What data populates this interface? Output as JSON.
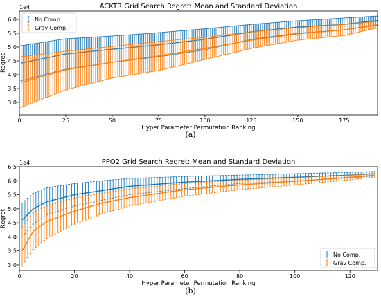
{
  "chart_data": [
    {
      "type": "line",
      "panel_label": "(a)",
      "title": "ACKTR Grid Search Regret: Mean and Standard Deviation",
      "xlabel": "Hyper Parameter Permutation Ranking",
      "ylabel": "Regret",
      "y_multiplier": "1e4",
      "xlim": [
        0,
        193
      ],
      "ylim": [
        2.55,
        6.3
      ],
      "xticks": [
        0,
        25,
        50,
        75,
        100,
        125,
        150,
        175
      ],
      "yticks": [
        3.0,
        3.5,
        4.0,
        4.5,
        5.0,
        5.5,
        6.0
      ],
      "grid": false,
      "legend_position": "top-left",
      "n_points": 193,
      "series": [
        {
          "name": "No Comp.",
          "color": "#1f77b4",
          "x": [
            1,
            25,
            50,
            75,
            100,
            125,
            150,
            175,
            192
          ],
          "mean": [
            4.42,
            4.75,
            4.92,
            5.08,
            5.28,
            5.55,
            5.72,
            5.82,
            5.95
          ],
          "upper": [
            5.05,
            5.3,
            5.4,
            5.52,
            5.66,
            5.82,
            5.95,
            6.05,
            6.12
          ],
          "lower": [
            3.78,
            4.2,
            4.45,
            4.65,
            4.9,
            5.28,
            5.5,
            5.62,
            5.78
          ]
        },
        {
          "name": "Grav Comp.",
          "color": "#ff7f0e",
          "x": [
            1,
            25,
            50,
            75,
            100,
            125,
            150,
            175,
            192
          ],
          "mean": [
            3.72,
            4.18,
            4.45,
            4.68,
            4.95,
            5.25,
            5.48,
            5.62,
            5.8
          ],
          "upper": [
            4.65,
            4.85,
            5.02,
            5.2,
            5.35,
            5.55,
            5.7,
            5.82,
            5.92
          ],
          "lower": [
            2.82,
            3.45,
            3.88,
            4.15,
            4.55,
            4.95,
            5.25,
            5.42,
            5.68
          ]
        }
      ]
    },
    {
      "type": "line",
      "panel_label": "(b)",
      "title": "PPO2 Grid Search Regret: Mean and Standard Deviation",
      "xlabel": "Hyper Parameter Permutation Ranking",
      "ylabel": "Regret",
      "y_multiplier": "1e4",
      "xlim": [
        0,
        130
      ],
      "ylim": [
        2.8,
        6.5
      ],
      "xticks": [
        0,
        20,
        40,
        60,
        80,
        100,
        120
      ],
      "yticks": [
        3.0,
        3.5,
        4.0,
        4.5,
        5.0,
        5.5,
        6.0,
        6.5
      ],
      "grid": false,
      "legend_position": "bottom-right",
      "n_points": 129,
      "series": [
        {
          "name": "No Comp.",
          "color": "#1f77b4",
          "x": [
            1,
            5,
            10,
            20,
            30,
            40,
            60,
            80,
            100,
            120,
            129
          ],
          "mean": [
            4.6,
            5.0,
            5.25,
            5.5,
            5.65,
            5.8,
            5.95,
            6.05,
            6.12,
            6.2,
            6.25
          ],
          "upper": [
            5.2,
            5.55,
            5.75,
            5.9,
            6.0,
            6.08,
            6.15,
            6.2,
            6.25,
            6.3,
            6.33
          ],
          "lower": [
            4.0,
            4.45,
            4.78,
            5.1,
            5.3,
            5.5,
            5.72,
            5.9,
            5.98,
            6.1,
            6.17
          ]
        },
        {
          "name": "Grav Comp.",
          "color": "#ff7f0e",
          "x": [
            1,
            5,
            10,
            20,
            30,
            40,
            60,
            80,
            100,
            120,
            129
          ],
          "mean": [
            3.5,
            4.2,
            4.55,
            4.92,
            5.2,
            5.4,
            5.68,
            5.85,
            5.98,
            6.12,
            6.2
          ],
          "upper": [
            4.35,
            4.85,
            5.1,
            5.38,
            5.55,
            5.7,
            5.9,
            6.02,
            6.1,
            6.2,
            6.26
          ],
          "lower": [
            2.95,
            3.55,
            3.95,
            4.45,
            4.82,
            5.1,
            5.45,
            5.68,
            5.85,
            6.03,
            6.13
          ]
        }
      ]
    }
  ]
}
